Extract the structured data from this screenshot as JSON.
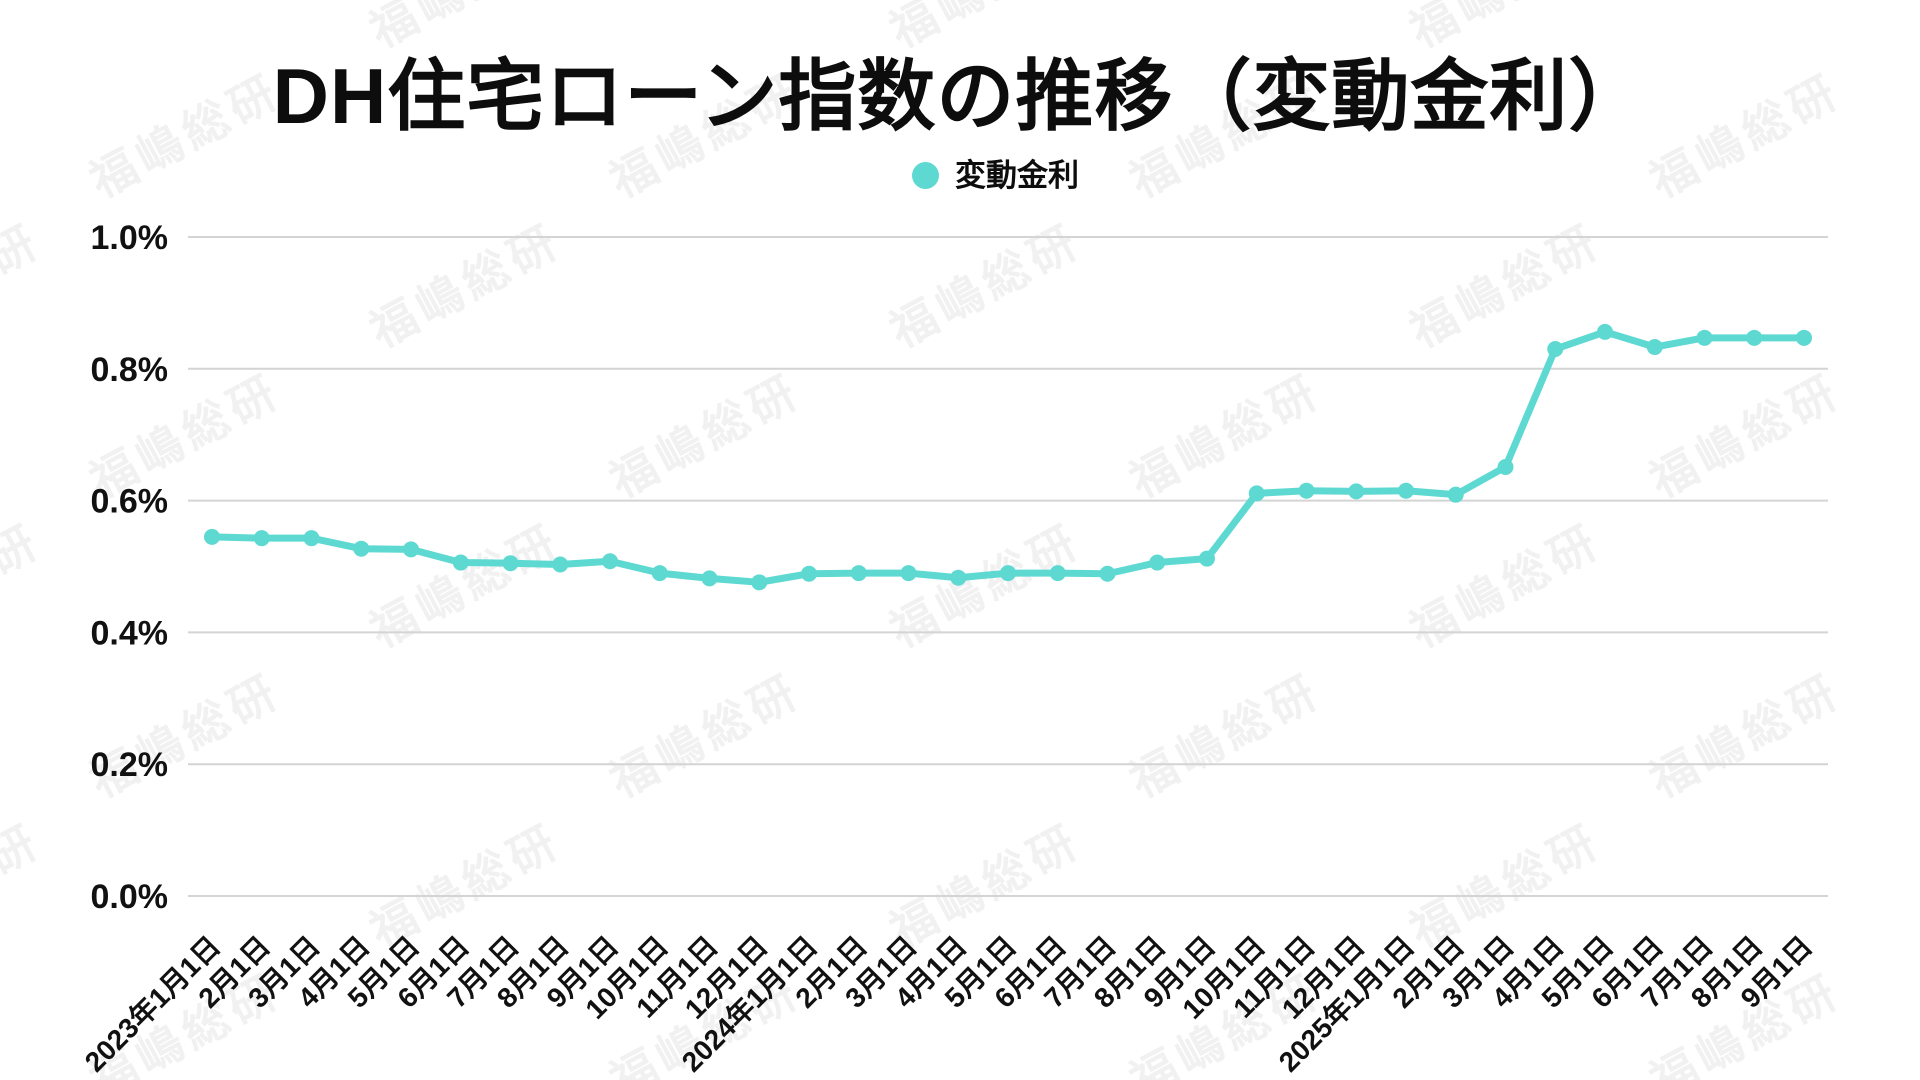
{
  "title": "DH住宅ローン指数の推移（変動金利）",
  "legend": {
    "label": "変動金利",
    "color": "#5ed9d2"
  },
  "watermark": {
    "text": "福嶋総研"
  },
  "colors": {
    "line": "#5ed9d2",
    "grid": "#d4d4d4",
    "text": "#111111",
    "background": "#ffffff"
  },
  "chart_data": {
    "type": "line",
    "title": "DH住宅ローン指数の推移（変動金利）",
    "xlabel": "",
    "ylabel": "",
    "ylim": [
      0,
      1.0
    ],
    "y_ticks": [
      "0.0%",
      "0.2%",
      "0.4%",
      "0.6%",
      "0.8%",
      "1.0%"
    ],
    "grid": true,
    "legend_position": "top-center",
    "categories": [
      "2023年1月1日",
      "2月1日",
      "3月1日",
      "4月1日",
      "5月1日",
      "6月1日",
      "7月1日",
      "8月1日",
      "9月1日",
      "10月1日",
      "11月1日",
      "12月1日",
      "2024年1月1日",
      "2月1日",
      "3月1日",
      "4月1日",
      "5月1日",
      "6月1日",
      "7月1日",
      "8月1日",
      "9月1日",
      "10月1日",
      "11月1日",
      "12月1日",
      "2025年1月1日",
      "2月1日",
      "3月1日",
      "4月1日",
      "5月1日",
      "6月1日",
      "7月1日",
      "8月1日",
      "9月1日"
    ],
    "series": [
      {
        "name": "変動金利",
        "unit": "%",
        "values": [
          0.545,
          0.543,
          0.543,
          0.527,
          0.526,
          0.506,
          0.505,
          0.503,
          0.508,
          0.49,
          0.482,
          0.476,
          0.489,
          0.49,
          0.49,
          0.483,
          0.49,
          0.49,
          0.489,
          0.506,
          0.512,
          0.611,
          0.615,
          0.614,
          0.615,
          0.609,
          0.651,
          0.83,
          0.856,
          0.833,
          0.847,
          0.847,
          0.847
        ]
      }
    ]
  }
}
